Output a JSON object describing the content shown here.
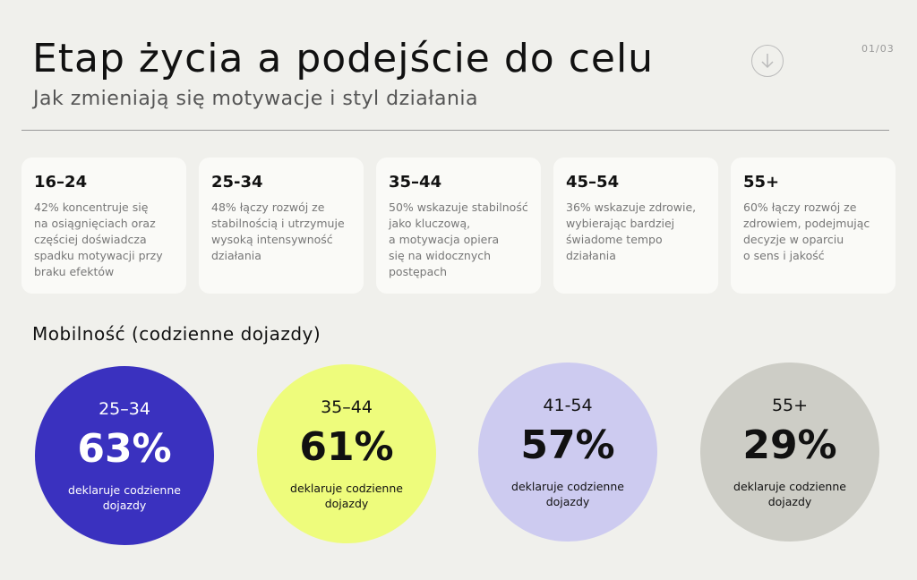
{
  "header": {
    "title": "Etap życia a podejście do celu",
    "subtitle": "Jak zmieniają się motywacje i styl działania",
    "page_indicator": "01/03",
    "download_icon": "arrow-down-circle-icon"
  },
  "cards": [
    {
      "age": "16–24",
      "text": "42% koncentruje się\nna osiągnięciach oraz\nczęściej doświadcza\nspadku motywacji przy\nbraku efektów"
    },
    {
      "age": "25-34",
      "text": "48% łączy rozwój ze\nstabilnością i utrzymuje\nwysoką intensywność\ndziałania"
    },
    {
      "age": "35–44",
      "text": "50% wskazuje stabilność\njako kluczową,\na motywacja opiera\nsię na widocznych\npostępach"
    },
    {
      "age": "45–54",
      "text": "36% wskazuje zdrowie,\nwybierając bardziej\nświadome tempo\ndziałania"
    },
    {
      "age": "55+",
      "text": "60% łączy rozwój ze\nzdrowiem, podejmując\ndecyzje w oparciu\no sens i jakość"
    }
  ],
  "mobility": {
    "title": "Mobilność (codzienne dojazdy)",
    "items": [
      {
        "age": "25–34",
        "value": "63%",
        "desc": "deklaruje codzienne\ndojazdy",
        "color": "#3a31bf",
        "text_color": "#ffffff"
      },
      {
        "age": "35–44",
        "value": "61%",
        "desc": "deklaruje codzienne\ndojazdy",
        "color": "#eefc7c",
        "text_color": "#111111"
      },
      {
        "age": "41-54",
        "value": "57%",
        "desc": "deklaruje codzienne\ndojazdy",
        "color": "#cdcbf0",
        "text_color": "#111111"
      },
      {
        "age": "55+",
        "value": "29%",
        "desc": "deklaruje codzienne\ndojazdy",
        "color": "#cdcdc6",
        "text_color": "#111111"
      }
    ]
  }
}
